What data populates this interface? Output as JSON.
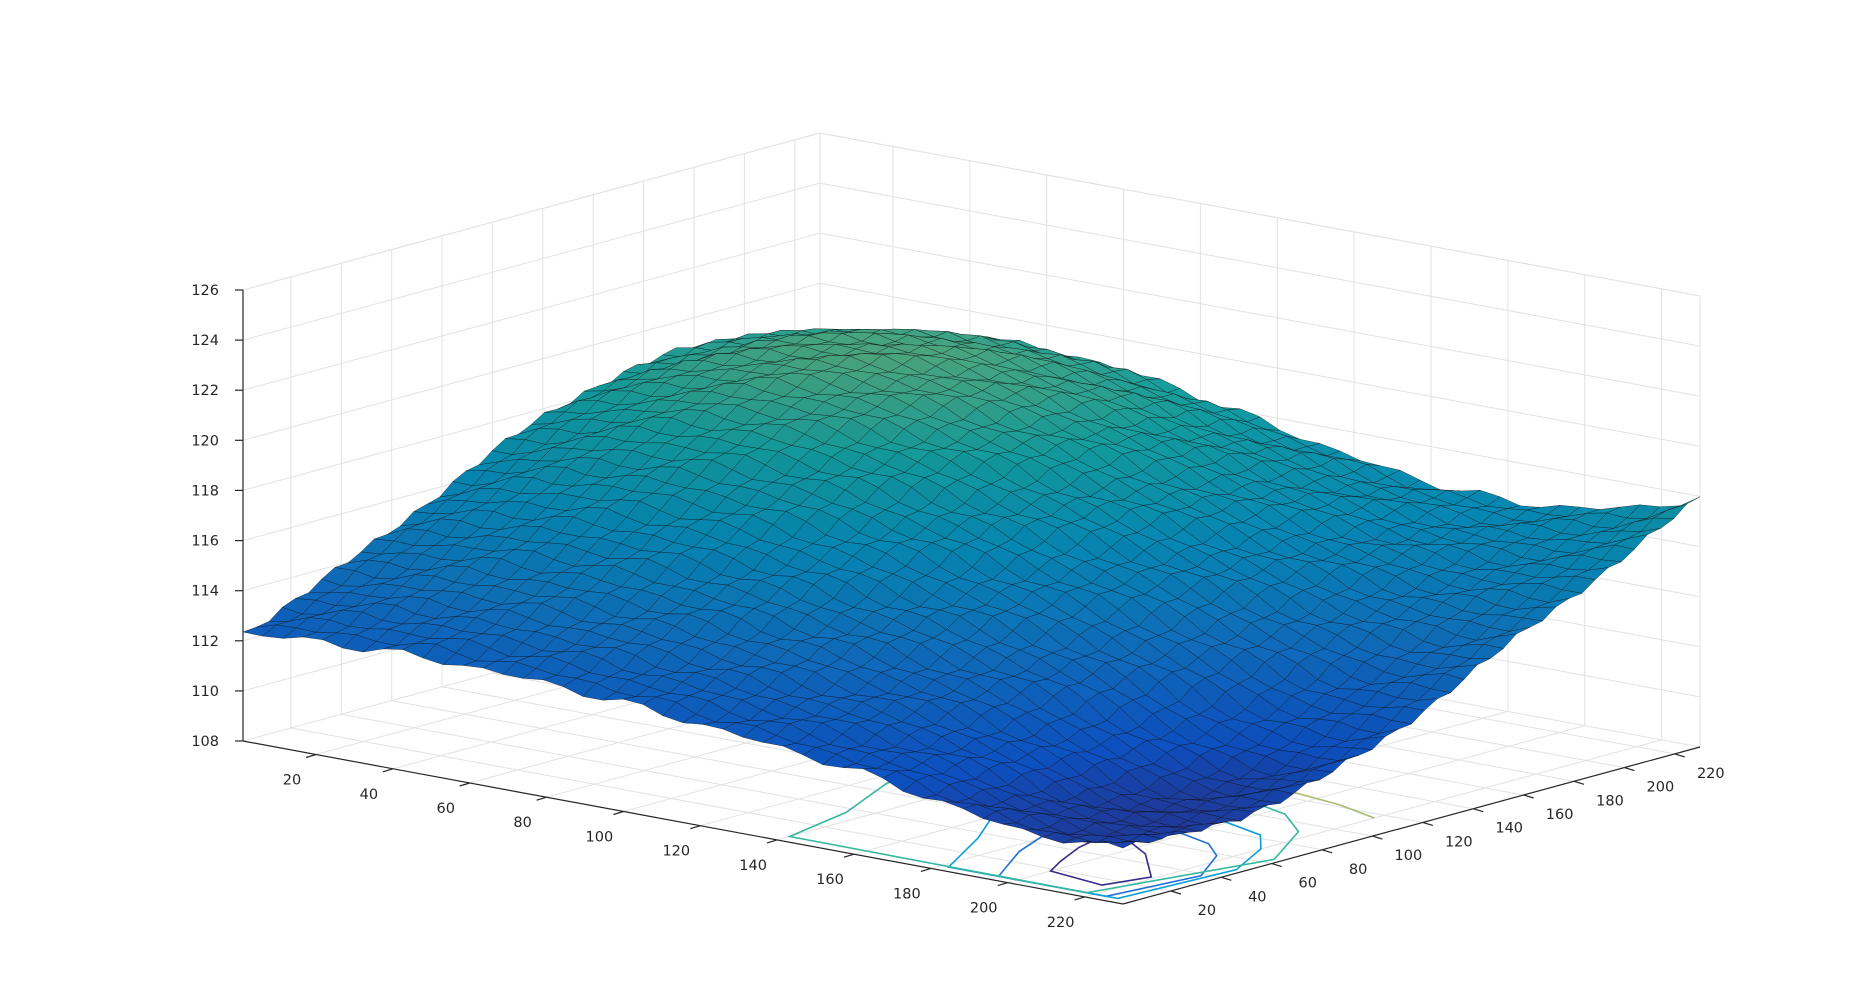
{
  "chart_data": {
    "type": "surface-contour",
    "title": "",
    "xlabel": "",
    "ylabel": "",
    "zlabel": "",
    "x_ticks": [
      20,
      40,
      60,
      80,
      100,
      120,
      140,
      160,
      180,
      200,
      220
    ],
    "y_ticks": [
      20,
      40,
      60,
      80,
      100,
      120,
      140,
      160,
      180,
      200,
      220
    ],
    "z_ticks": [
      108,
      110,
      112,
      114,
      116,
      118,
      120,
      122,
      124,
      126
    ],
    "x_tick_labels": [
      "20",
      "40",
      "60",
      "80",
      "100",
      "120",
      "140",
      "160",
      "180",
      "200",
      "220"
    ],
    "y_tick_labels": [
      "20",
      "40",
      "60",
      "80",
      "100",
      "120",
      "140",
      "160",
      "180",
      "200",
      "220"
    ],
    "z_tick_labels": [
      "108",
      "110",
      "112",
      "114",
      "116",
      "118",
      "120",
      "122",
      "124",
      "126"
    ],
    "xlim": [
      1,
      230
    ],
    "ylim": [
      1,
      230
    ],
    "zlim": [
      108,
      126
    ],
    "grid": true,
    "colormap": "parula",
    "surface_corners": [
      {
        "x": 1,
        "y": 230,
        "z": 120.2
      },
      {
        "x": 230,
        "y": 1,
        "z": 112.5
      },
      {
        "x": 230,
        "y": 230,
        "z": 120.2
      }
    ],
    "surface_max": {
      "x": 50,
      "y": 175,
      "z": 125.5
    },
    "surface_min": {
      "x": 205,
      "y": 80,
      "z": 108.6
    },
    "contour_levels": [
      {
        "level": 110,
        "color": "#352a87"
      },
      {
        "level": 112,
        "color": "#1f6fd6"
      },
      {
        "level": 114,
        "color": "#0d9dd8"
      },
      {
        "level": 116,
        "color": "#37b89d"
      },
      {
        "level": 118,
        "color": "#a7bd72"
      },
      {
        "level": 120,
        "color": "#d6ba6a"
      },
      {
        "level": 122,
        "color": "#f2c243"
      },
      {
        "level": 124,
        "color": "#f2dc17"
      }
    ],
    "contour_paths": [
      {
        "level": 110,
        "points": [
          [
            200,
            18
          ],
          [
            216,
            14
          ],
          [
            219,
            29
          ],
          [
            205,
            48
          ],
          [
            197,
            55
          ],
          [
            189,
            53
          ],
          [
            191,
            43
          ],
          [
            196,
            28
          ]
        ]
      },
      {
        "level": 112,
        "points": [
          [
            195,
            5
          ],
          [
            223,
            5
          ],
          [
            226,
            38
          ],
          [
            217,
            58
          ],
          [
            209,
            67
          ],
          [
            196,
            73
          ],
          [
            184,
            73
          ],
          [
            178,
            66
          ],
          [
            178,
            50
          ],
          [
            184,
            30
          ]
        ]
      },
      {
        "level": 114,
        "points": [
          [
            182,
            5
          ],
          [
            226,
            5
          ],
          [
            228,
            49
          ],
          [
            220,
            71
          ],
          [
            212,
            83
          ],
          [
            194,
            91
          ],
          [
            174,
            94
          ],
          [
            158,
            91
          ],
          [
            152,
            79
          ],
          [
            159,
            58
          ],
          [
            170,
            35
          ]
        ]
      },
      {
        "level": 116,
        "points": [
          [
            140,
            6
          ],
          [
            218,
            5
          ],
          [
            228,
            64
          ],
          [
            216,
            92
          ],
          [
            204,
            105
          ],
          [
            184,
            114
          ],
          [
            160,
            117
          ],
          [
            133,
            110
          ],
          [
            120,
            92
          ],
          [
            125,
            67
          ],
          [
            135,
            36
          ]
        ]
      },
      {
        "level": 118,
        "points": [
          [
            82,
            108
          ],
          [
            96,
            112
          ],
          [
            122,
            117
          ],
          [
            148,
            122
          ],
          [
            167,
            125
          ],
          [
            190,
            126
          ],
          [
            207,
            122
          ],
          [
            220,
            116
          ]
        ]
      },
      {
        "level": 120,
        "points": [
          [
            40,
            219
          ],
          [
            40,
            175
          ],
          [
            46,
            135
          ],
          [
            62,
            118
          ],
          [
            87,
            118
          ],
          [
            111,
            130
          ],
          [
            127,
            152
          ],
          [
            136,
            185
          ],
          [
            133,
            214
          ],
          [
            128,
            229
          ]
        ]
      },
      {
        "level": 122,
        "points": [
          [
            63,
            228
          ],
          [
            67,
            196
          ],
          [
            80,
            177
          ],
          [
            95,
            177
          ],
          [
            108,
            191
          ],
          [
            114,
            213
          ],
          [
            114,
            229
          ]
        ]
      },
      {
        "level": 124,
        "points": [
          [
            87,
            215
          ],
          [
            86,
            197
          ],
          [
            89,
            183
          ],
          [
            101,
            176
          ],
          [
            114,
            180
          ],
          [
            121,
            196
          ],
          [
            120,
            215
          ],
          [
            117,
            226
          ],
          [
            104,
            229
          ],
          [
            93,
            224
          ]
        ]
      }
    ]
  }
}
